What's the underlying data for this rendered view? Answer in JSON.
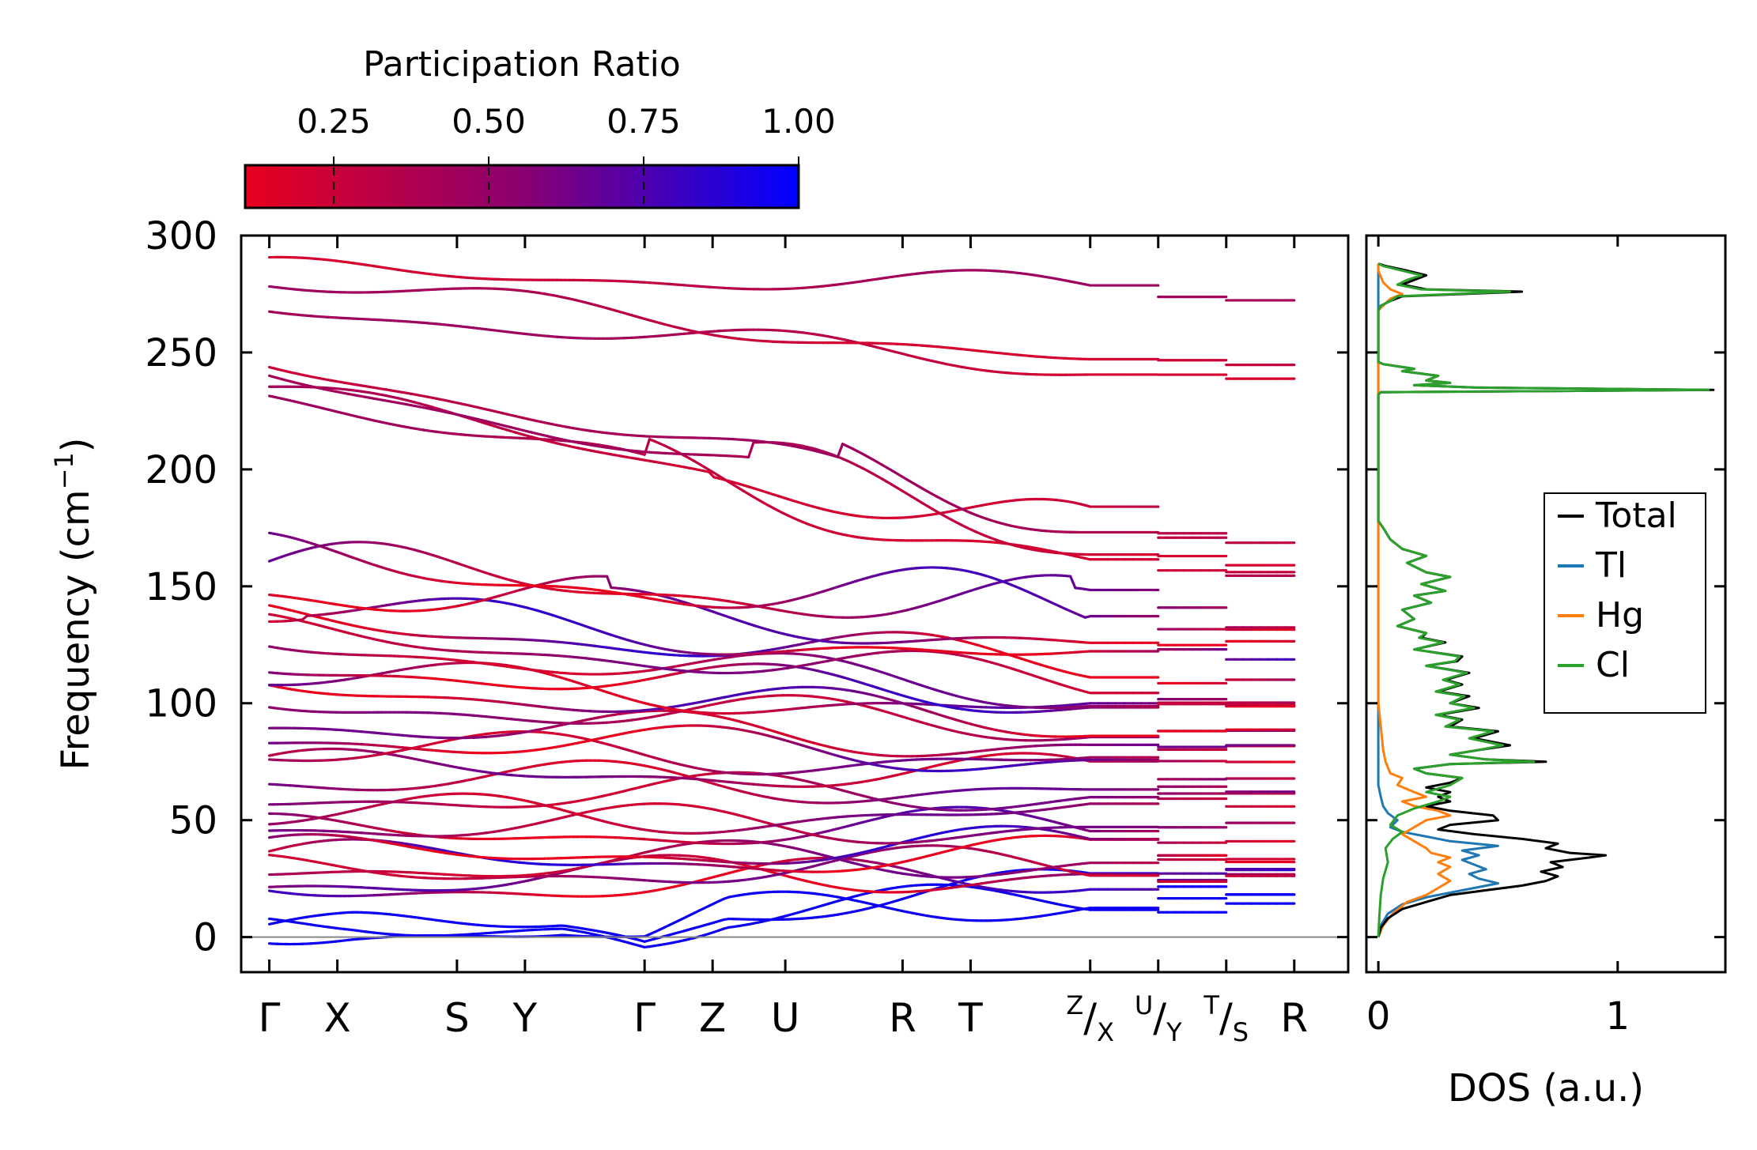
{
  "chart_data": [
    {
      "type": "line",
      "subtype": "phonon-band-structure",
      "title": "",
      "ylabel_main": "Frequency (cm",
      "ylabel_sup": "−1",
      "ylabel_end": ")",
      "ylim": [
        -15,
        300
      ],
      "yticks": [
        0,
        50,
        100,
        150,
        200,
        250,
        300
      ],
      "path_labels": [
        {
          "main": "Γ"
        },
        {
          "main": "X"
        },
        {
          "main": "S"
        },
        {
          "main": "Y"
        },
        {
          "main": "Γ"
        },
        {
          "main": "Z"
        },
        {
          "main": "U"
        },
        {
          "main": "R"
        },
        {
          "main": "T"
        },
        {
          "sup": "Z",
          "sub": "X"
        },
        {
          "sup": "U",
          "sub": "Y"
        },
        {
          "sup": "T",
          "sub": "S"
        },
        {
          "main": "R"
        }
      ],
      "path_positions": [
        0,
        0.29,
        0.8,
        1.09,
        1.6,
        1.89,
        2.2,
        2.7,
        2.99,
        3.5,
        3.79,
        4.08,
        4.37
      ],
      "segments": [
        [
          0,
          1.6
        ],
        [
          1.6,
          3.5
        ],
        [
          3.5,
          3.79
        ],
        [
          3.79,
          4.08
        ],
        [
          4.08,
          4.37
        ]
      ],
      "colorbar": {
        "label": "Participation Ratio",
        "tick_labels": [
          "0.25",
          "0.50",
          "0.75",
          "1.00"
        ],
        "ticks": [
          0.25,
          0.5,
          0.75,
          1.0
        ],
        "range": [
          0.107,
          1.0
        ],
        "color_low": "#e8001e",
        "color_mid": "#8a0070",
        "color_high": "#0000ff"
      },
      "bands_at_points": {
        "Gamma": [
          0,
          0,
          0,
          20,
          24,
          27,
          30,
          33,
          35,
          44,
          48,
          52,
          60,
          68,
          72,
          80,
          86,
          92,
          100,
          108,
          112,
          116,
          126,
          130,
          135,
          141,
          150,
          158,
          160,
          233,
          235,
          241,
          245,
          269,
          281,
          285
        ],
        "R": [
          20,
          26,
          28,
          31,
          34,
          39,
          47,
          52,
          62,
          68,
          74,
          80,
          88,
          92,
          98,
          103,
          112,
          120,
          135,
          144,
          154,
          164,
          237,
          276
        ]
      },
      "band_color_note": "participation ratio per band point, red = localized (low), blue = extended (high)"
    },
    {
      "type": "line",
      "subtype": "density-of-states",
      "xlabel": "DOS (a.u.)",
      "xticks": [
        0,
        1
      ],
      "xlim": [
        -0.05,
        1.45
      ],
      "ylim": [
        -15,
        300
      ],
      "legend_position": "center-right",
      "series": [
        {
          "name": "Total",
          "color": "#000000",
          "points": [
            [
              0,
              0
            ],
            [
              0.01,
              4
            ],
            [
              0.04,
              8
            ],
            [
              0.1,
              12
            ],
            [
              0.2,
              15
            ],
            [
              0.3,
              18
            ],
            [
              0.45,
              20
            ],
            [
              0.6,
              22
            ],
            [
              0.7,
              24
            ],
            [
              0.75,
              26
            ],
            [
              0.68,
              28
            ],
            [
              0.77,
              30
            ],
            [
              0.72,
              32
            ],
            [
              0.88,
              34
            ],
            [
              0.95,
              35
            ],
            [
              0.8,
              36
            ],
            [
              0.7,
              38
            ],
            [
              0.75,
              40
            ],
            [
              0.6,
              42
            ],
            [
              0.4,
              44
            ],
            [
              0.25,
              46
            ],
            [
              0.3,
              48
            ],
            [
              0.5,
              50
            ],
            [
              0.48,
              52
            ],
            [
              0.3,
              54
            ],
            [
              0.2,
              56
            ],
            [
              0.3,
              58
            ],
            [
              0.25,
              60
            ],
            [
              0.3,
              62
            ],
            [
              0.2,
              64
            ],
            [
              0.3,
              66
            ],
            [
              0.35,
              68
            ],
            [
              0.2,
              70
            ],
            [
              0.15,
              72
            ],
            [
              0.3,
              74
            ],
            [
              0.7,
              75
            ],
            [
              0.45,
              76
            ],
            [
              0.3,
              78
            ],
            [
              0.42,
              80
            ],
            [
              0.55,
              82
            ],
            [
              0.4,
              85
            ],
            [
              0.5,
              88
            ],
            [
              0.3,
              90
            ],
            [
              0.35,
              93
            ],
            [
              0.25,
              95
            ],
            [
              0.42,
              98
            ],
            [
              0.3,
              100
            ],
            [
              0.38,
              103
            ],
            [
              0.25,
              105
            ],
            [
              0.35,
              108
            ],
            [
              0.28,
              110
            ],
            [
              0.38,
              113
            ],
            [
              0.2,
              116
            ],
            [
              0.33,
              118
            ],
            [
              0.35,
              120
            ],
            [
              0.15,
              123
            ],
            [
              0.28,
              126
            ],
            [
              0.18,
              128
            ],
            [
              0.2,
              130
            ],
            [
              0.08,
              133
            ],
            [
              0.15,
              136
            ],
            [
              0.1,
              140
            ],
            [
              0.22,
              143
            ],
            [
              0.15,
              146
            ],
            [
              0.28,
              148
            ],
            [
              0.18,
              151
            ],
            [
              0.3,
              154
            ],
            [
              0.2,
              156
            ],
            [
              0.12,
              160
            ],
            [
              0.2,
              163
            ],
            [
              0.1,
              166
            ],
            [
              0.05,
              170
            ],
            [
              0.02,
              175
            ],
            [
              0,
              178
            ],
            [
              0,
              232
            ],
            [
              0.01,
              233
            ],
            [
              1.4,
              234
            ],
            [
              0.4,
              235
            ],
            [
              0.15,
              236
            ],
            [
              0.3,
              237
            ],
            [
              0.2,
              238
            ],
            [
              0.25,
              240
            ],
            [
              0.1,
              242
            ],
            [
              0.15,
              243
            ],
            [
              0.02,
              245
            ],
            [
              0,
              246
            ],
            [
              0,
              268
            ],
            [
              0.01,
              270
            ],
            [
              0.05,
              272
            ],
            [
              0.1,
              274
            ],
            [
              0.6,
              276
            ],
            [
              0.2,
              277
            ],
            [
              0.1,
              279
            ],
            [
              0.15,
              281
            ],
            [
              0.2,
              283
            ],
            [
              0.12,
              285
            ],
            [
              0.03,
              287
            ],
            [
              0,
              288
            ]
          ]
        },
        {
          "name": "Tl",
          "color": "#1f77b4",
          "points": [
            [
              0,
              0
            ],
            [
              0.01,
              5
            ],
            [
              0.04,
              10
            ],
            [
              0.1,
              14
            ],
            [
              0.2,
              17
            ],
            [
              0.3,
              19
            ],
            [
              0.4,
              21
            ],
            [
              0.5,
              23
            ],
            [
              0.42,
              25
            ],
            [
              0.38,
              27
            ],
            [
              0.45,
              29
            ],
            [
              0.4,
              31
            ],
            [
              0.35,
              33
            ],
            [
              0.42,
              35
            ],
            [
              0.35,
              37
            ],
            [
              0.5,
              39
            ],
            [
              0.3,
              41
            ],
            [
              0.2,
              43
            ],
            [
              0.1,
              45
            ],
            [
              0.05,
              47
            ],
            [
              0.08,
              50
            ],
            [
              0.04,
              53
            ],
            [
              0.02,
              56
            ],
            [
              0.01,
              60
            ],
            [
              0,
              65
            ],
            [
              0,
              288
            ]
          ]
        },
        {
          "name": "Hg",
          "color": "#ff7f0e",
          "points": [
            [
              0,
              0
            ],
            [
              0.02,
              5
            ],
            [
              0.06,
              10
            ],
            [
              0.12,
              15
            ],
            [
              0.2,
              18
            ],
            [
              0.25,
              21
            ],
            [
              0.3,
              24
            ],
            [
              0.25,
              27
            ],
            [
              0.3,
              30
            ],
            [
              0.25,
              32
            ],
            [
              0.3,
              34
            ],
            [
              0.22,
              36
            ],
            [
              0.2,
              38
            ],
            [
              0.15,
              41
            ],
            [
              0.1,
              44
            ],
            [
              0.15,
              47
            ],
            [
              0.2,
              50
            ],
            [
              0.3,
              52
            ],
            [
              0.25,
              54
            ],
            [
              0.15,
              56
            ],
            [
              0.1,
              58
            ],
            [
              0.2,
              60
            ],
            [
              0.15,
              62
            ],
            [
              0.08,
              65
            ],
            [
              0.1,
              68
            ],
            [
              0.05,
              70
            ],
            [
              0.03,
              75
            ],
            [
              0.02,
              80
            ],
            [
              0.01,
              90
            ],
            [
              0,
              100
            ],
            [
              0,
              268
            ],
            [
              0.03,
              271
            ],
            [
              0.05,
              273
            ],
            [
              0.1,
              275
            ],
            [
              0.05,
              277
            ],
            [
              0.02,
              280
            ],
            [
              0,
              285
            ],
            [
              0,
              288
            ]
          ]
        },
        {
          "name": "Cl",
          "color": "#2ca02c",
          "points": [
            [
              0,
              0
            ],
            [
              0.005,
              10
            ],
            [
              0.01,
              18
            ],
            [
              0.02,
              25
            ],
            [
              0.04,
              32
            ],
            [
              0.03,
              38
            ],
            [
              0.06,
              42
            ],
            [
              0.1,
              45
            ],
            [
              0.05,
              48
            ],
            [
              0.08,
              52
            ],
            [
              0.15,
              55
            ],
            [
              0.25,
              58
            ],
            [
              0.3,
              60
            ],
            [
              0.2,
              62
            ],
            [
              0.3,
              65
            ],
            [
              0.35,
              68
            ],
            [
              0.2,
              70
            ],
            [
              0.15,
              72
            ],
            [
              0.3,
              74
            ],
            [
              0.65,
              75
            ],
            [
              0.45,
              76
            ],
            [
              0.3,
              78
            ],
            [
              0.42,
              80
            ],
            [
              0.52,
              82
            ],
            [
              0.38,
              85
            ],
            [
              0.48,
              88
            ],
            [
              0.28,
              90
            ],
            [
              0.34,
              93
            ],
            [
              0.24,
              95
            ],
            [
              0.4,
              98
            ],
            [
              0.3,
              100
            ],
            [
              0.36,
              103
            ],
            [
              0.24,
              105
            ],
            [
              0.34,
              108
            ],
            [
              0.27,
              110
            ],
            [
              0.37,
              113
            ],
            [
              0.2,
              116
            ],
            [
              0.32,
              118
            ],
            [
              0.34,
              120
            ],
            [
              0.15,
              123
            ],
            [
              0.27,
              126
            ],
            [
              0.17,
              128
            ],
            [
              0.2,
              130
            ],
            [
              0.08,
              133
            ],
            [
              0.15,
              136
            ],
            [
              0.1,
              140
            ],
            [
              0.22,
              143
            ],
            [
              0.15,
              146
            ],
            [
              0.28,
              148
            ],
            [
              0.18,
              151
            ],
            [
              0.3,
              154
            ],
            [
              0.2,
              156
            ],
            [
              0.12,
              160
            ],
            [
              0.2,
              163
            ],
            [
              0.1,
              166
            ],
            [
              0.05,
              170
            ],
            [
              0.02,
              175
            ],
            [
              0,
              178
            ],
            [
              0,
              232
            ],
            [
              0.01,
              233
            ],
            [
              1.38,
              234
            ],
            [
              0.4,
              235
            ],
            [
              0.15,
              236
            ],
            [
              0.3,
              237
            ],
            [
              0.2,
              238
            ],
            [
              0.25,
              240
            ],
            [
              0.1,
              242
            ],
            [
              0.15,
              243
            ],
            [
              0.02,
              245
            ],
            [
              0,
              246
            ],
            [
              0,
              268
            ],
            [
              0.01,
              270
            ],
            [
              0.05,
              272
            ],
            [
              0.08,
              274
            ],
            [
              0.55,
              276
            ],
            [
              0.18,
              277
            ],
            [
              0.08,
              279
            ],
            [
              0.12,
              281
            ],
            [
              0.18,
              283
            ],
            [
              0.1,
              285
            ],
            [
              0.02,
              287
            ],
            [
              0,
              288
            ]
          ]
        }
      ]
    }
  ]
}
